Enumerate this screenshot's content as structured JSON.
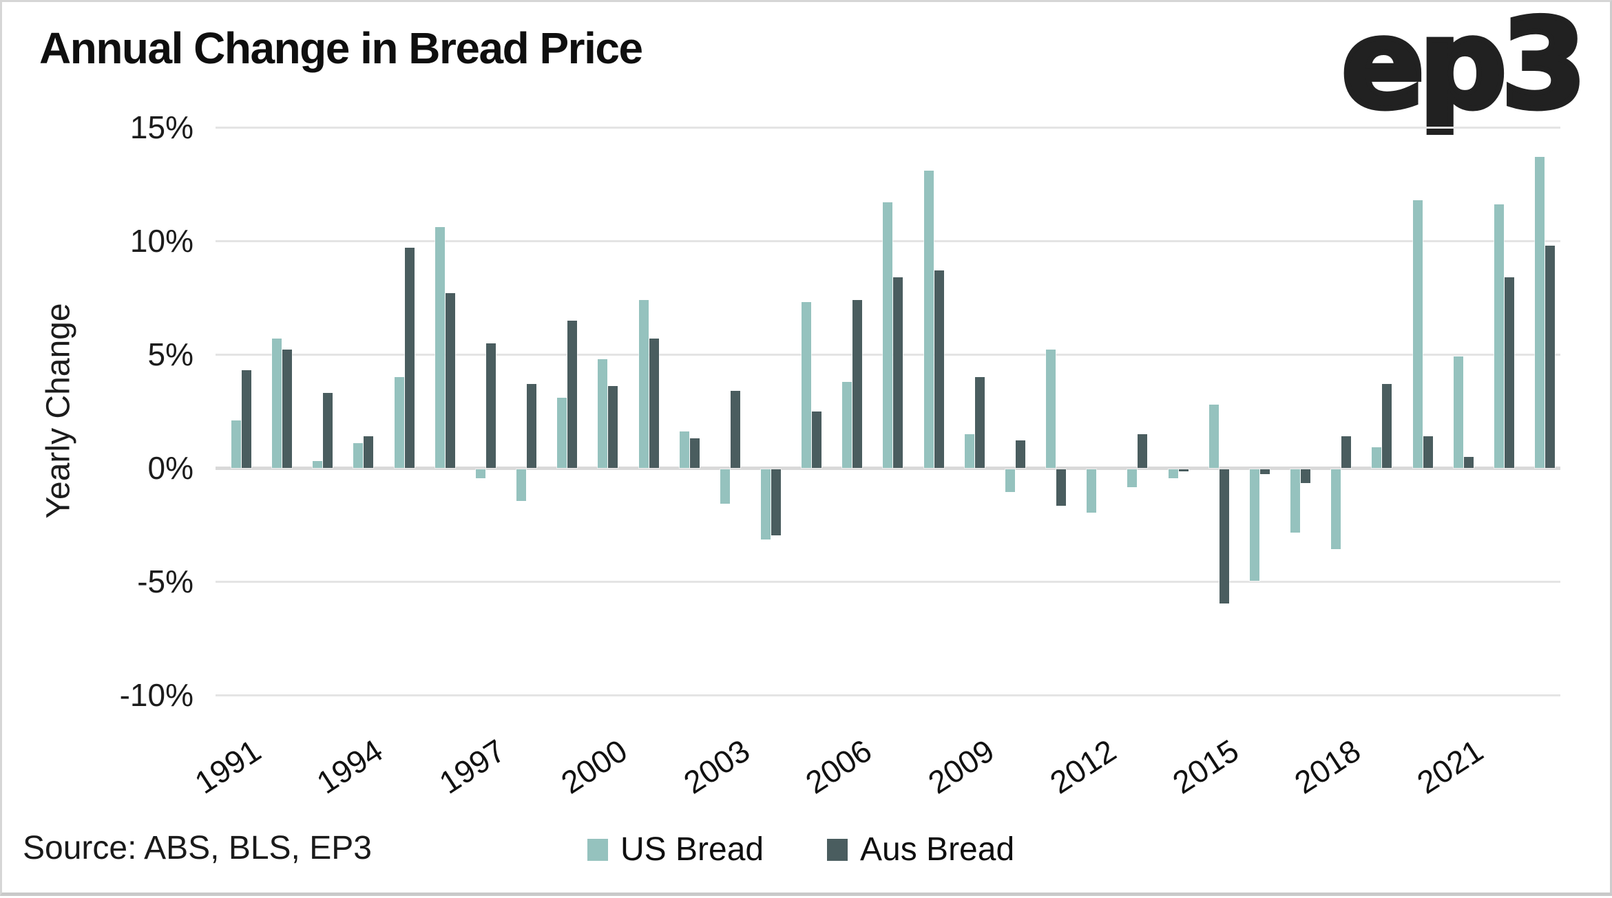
{
  "header": {
    "logo_text": "ep3"
  },
  "chart_data": {
    "type": "bar",
    "title": "Annual Change in Bread Price",
    "ylabel": "Yearly Change",
    "xlabel": "",
    "ylim": [
      -10,
      15
    ],
    "ytick_step": 5,
    "ytick_labels": [
      "15%",
      "10%",
      "5%",
      "0%",
      "-5%",
      "-10%"
    ],
    "grid": true,
    "legend_position": "bottom",
    "categories": [
      1991,
      1992,
      1993,
      1994,
      1995,
      1996,
      1997,
      1998,
      1999,
      2000,
      2001,
      2002,
      2003,
      2004,
      2005,
      2006,
      2007,
      2008,
      2009,
      2010,
      2011,
      2012,
      2013,
      2014,
      2015,
      2016,
      2017,
      2018,
      2019,
      2020,
      2021,
      2022,
      2023
    ],
    "xtick_every": 3,
    "series": [
      {
        "name": "US Bread",
        "color": "#95c2be",
        "values": [
          2.1,
          5.7,
          0.3,
          1.1,
          4.0,
          10.6,
          -0.4,
          -1.4,
          3.1,
          4.8,
          7.4,
          1.6,
          -1.5,
          -3.1,
          7.3,
          3.8,
          11.7,
          13.1,
          1.5,
          -1.0,
          5.2,
          -1.9,
          -0.8,
          -0.4,
          2.8,
          -4.9,
          -2.8,
          -3.5,
          0.9,
          11.8,
          4.9,
          11.6,
          13.7
        ]
      },
      {
        "name": "Aus Bread",
        "color": "#4a5d5f",
        "values": [
          4.3,
          5.2,
          3.3,
          1.4,
          9.7,
          7.7,
          5.5,
          3.7,
          6.5,
          3.6,
          5.7,
          1.3,
          3.4,
          -2.9,
          2.5,
          7.4,
          8.4,
          8.7,
          4.0,
          1.2,
          -1.6,
          0.0,
          1.5,
          -0.1,
          -5.9,
          -0.2,
          -0.6,
          1.4,
          3.7,
          1.4,
          0.5,
          8.4,
          9.8
        ]
      }
    ]
  },
  "footer": {
    "source": "Source: ABS, BLS, EP3"
  }
}
